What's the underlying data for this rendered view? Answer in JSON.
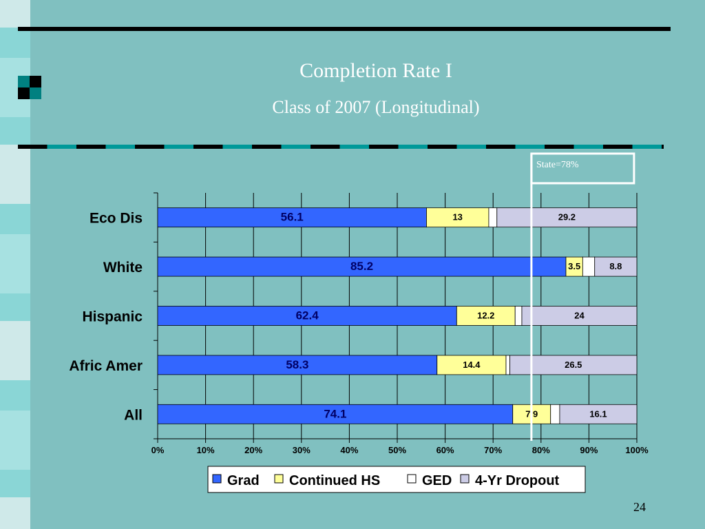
{
  "slide": {
    "title": "Completion Rate I",
    "subtitle": "Class of 2007 (Longitudinal)",
    "page_number": "24",
    "state_callout": "State=78%"
  },
  "colors": {
    "background": "#80C0C0",
    "grad": "#3366FF",
    "continued_hs": "#FFFF99",
    "ged": "#FFFFFF",
    "dropout": "#CCCCE6"
  },
  "chart_data": {
    "type": "bar",
    "orientation": "horizontal",
    "stacked": "percent",
    "categories": [
      "Eco Dis",
      "White",
      "Hispanic",
      "Afric Amer",
      "All"
    ],
    "series": [
      {
        "name": "Grad",
        "values": [
          56.1,
          85.2,
          62.4,
          58.3,
          74.1
        ]
      },
      {
        "name": "Continued HS",
        "values": [
          13,
          3.5,
          12.2,
          14.4,
          7.9
        ]
      },
      {
        "name": "GED",
        "values": [
          1.7,
          2.5,
          1.4,
          0.8,
          1.9
        ]
      },
      {
        "name": "4-Yr Dropout",
        "values": [
          29.2,
          8.8,
          24,
          26.5,
          16.1
        ]
      }
    ],
    "labeled_series": [
      "Grad",
      "Continued HS",
      "4-Yr Dropout"
    ],
    "x_ticks": [
      "0%",
      "10%",
      "20%",
      "30%",
      "40%",
      "50%",
      "60%",
      "70%",
      "80%",
      "90%",
      "100%"
    ],
    "xlim": [
      0,
      100
    ],
    "reference_line": {
      "label": "State=78%",
      "value": 78
    },
    "grid": true,
    "legend_position": "bottom"
  }
}
